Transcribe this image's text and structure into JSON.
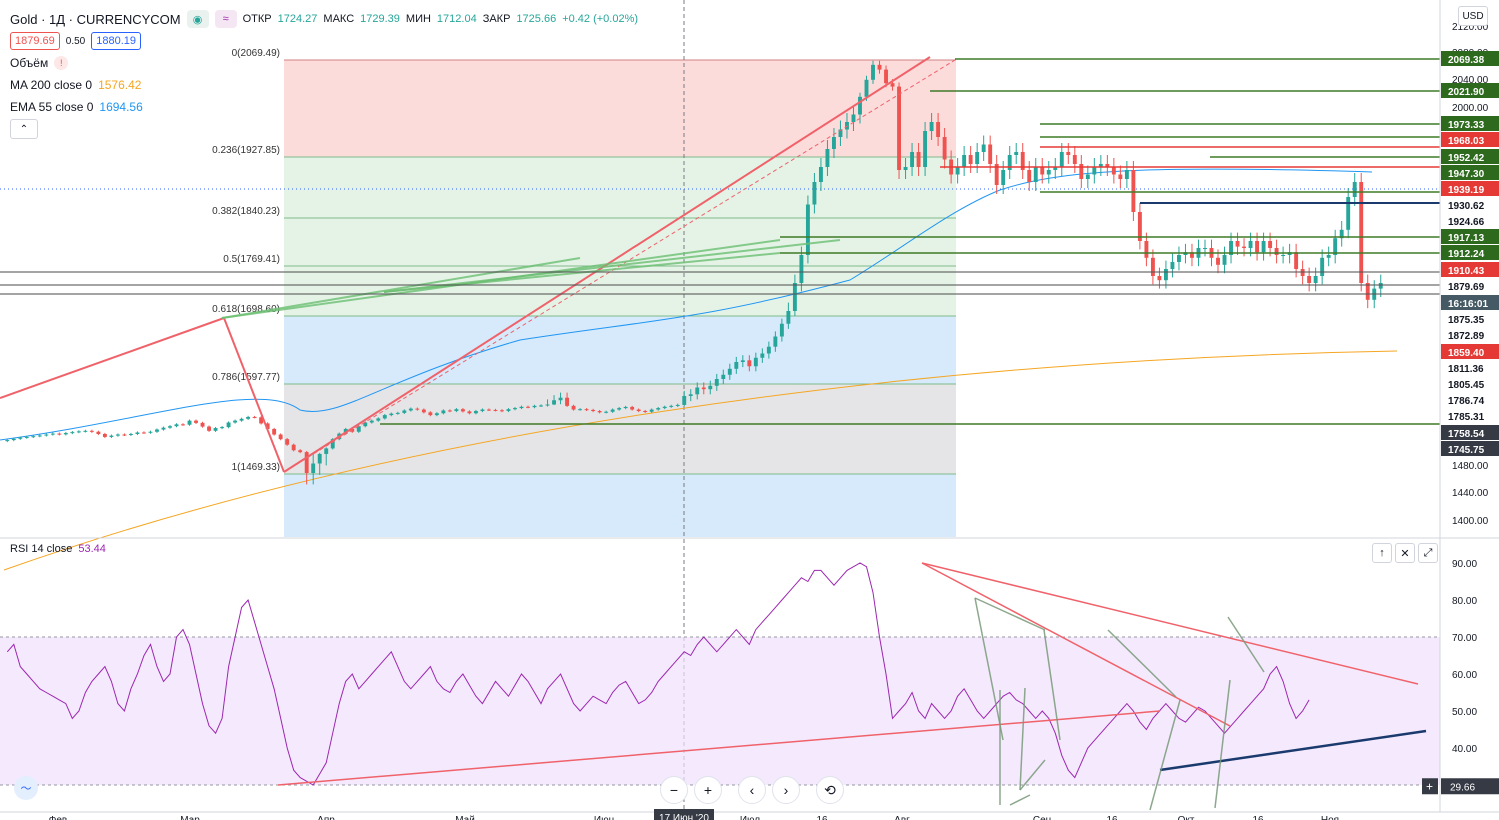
{
  "legend": {
    "symbol_title": "Gold · 1Д · CURRENCYCOM",
    "open_label": "ОТКР",
    "open": "1724.27",
    "high_label": "МАКС",
    "high": "1729.39",
    "low_label": "МИН",
    "low": "1712.04",
    "close_label": "ЗАКР",
    "close": "1725.66",
    "change": "+0.42 (+0.02%)",
    "bid": "1879.69",
    "spread": "0.50",
    "ask": "1880.19",
    "volume_label": "Объём",
    "ma_label": "MA 200 close 0",
    "ma_value": "1576.42",
    "ema_label": "EMA 55 close 0",
    "ema_value": "1694.56",
    "collapse_icon": "chevron-up-icon"
  },
  "currency": "USD",
  "rsi_legend": {
    "label": "RSI 14 close",
    "value": "53.44"
  },
  "colors": {
    "up": "#26a69a",
    "down": "#ef5350",
    "ma200": "#f5a623",
    "ema55": "#2196f3",
    "rsi": "#9c27b0",
    "rsi_band": "#f0e0fc",
    "trend_red": "#f0626a",
    "trend_green": "#6cbf72",
    "fib_red": "#fbd5d5",
    "fib_green": "#dff1e2",
    "fib_blue": "#cfe6fb",
    "fib_gray": "#e1e1e3",
    "navy": "#1a3a6e"
  },
  "fib_labels": [
    "0(2069.49)",
    "0.236(1927.85)",
    "0.382(1840.23)",
    "0.5(1769.41)",
    "0.618(1698.60)",
    "0.786(1597.77)",
    "1(1469.33)"
  ],
  "price_axis_ticks": [
    "2120.00",
    "2080.00",
    "2040.00",
    "2000.00",
    "1480.00",
    "1440.00",
    "1400.00"
  ],
  "price_tags": [
    {
      "text": "2069.38",
      "style": "green"
    },
    {
      "text": "2021.90",
      "style": "green"
    },
    {
      "text": "1973.33",
      "style": "green"
    },
    {
      "text": "1968.03",
      "style": "red"
    },
    {
      "text": "1952.42",
      "style": "green"
    },
    {
      "text": "1947.30",
      "style": "green"
    },
    {
      "text": "1939.19",
      "style": "red"
    },
    {
      "text": "1930.62",
      "style": "navy"
    },
    {
      "text": "1924.66",
      "style": "gray"
    },
    {
      "text": "1917.13",
      "style": "green"
    },
    {
      "text": "1912.24",
      "style": "green"
    },
    {
      "text": "1910.43",
      "style": "red"
    },
    {
      "text": "1879.69",
      "style": "gray"
    },
    {
      "text": "16:16:01",
      "style": "teal"
    },
    {
      "text": "1875.35",
      "style": "gray"
    },
    {
      "text": "1872.89",
      "style": "gray"
    },
    {
      "text": "1859.40",
      "style": "red"
    },
    {
      "text": "1811.36",
      "style": "gray"
    },
    {
      "text": "1805.45",
      "style": "gray"
    },
    {
      "text": "1786.74",
      "style": "gray"
    },
    {
      "text": "1785.31",
      "style": "gray"
    },
    {
      "text": "1758.54",
      "style": "dark"
    },
    {
      "text": "1745.75",
      "style": "dark"
    }
  ],
  "rsi_axis_ticks": [
    "90.00",
    "80.00",
    "70.00",
    "60.00",
    "50.00",
    "40.00"
  ],
  "rsi_crosshair_value": "29.66",
  "time_axis_labels": [
    "Фев",
    "Мар",
    "Апр",
    "Май",
    "Июн",
    "Июл",
    "16",
    "Авг",
    "Сен",
    "16",
    "Окт",
    "16",
    "Ноя"
  ],
  "crosshair_date": "17 Июн '20",
  "nav_buttons": [
    "−",
    "+",
    "‹",
    "›",
    "⟲"
  ],
  "pane_tools": [
    "↑",
    "✕",
    "⤢"
  ],
  "chart_data": {
    "type": "candlestick",
    "instrument": "Gold",
    "timeframe": "1Д",
    "ylim": [
      1400,
      2120
    ],
    "ohlc_open": [
      1550,
      1555,
      1562,
      1568,
      1572,
      1576,
      1580,
      1585,
      1590,
      1586,
      1593,
      1598,
      1602,
      1605,
      1600,
      1588,
      1572,
      1579,
      1585,
      1583,
      1588,
      1596,
      1595,
      1600,
      1612,
      1622,
      1630,
      1640,
      1638,
      1660,
      1648,
      1628,
      1605,
      1620,
      1625,
      1650,
      1660,
      1670,
      1680,
      1678,
      1645,
      1615,
      1585,
      1560,
      1530,
      1500,
      1490,
      1470,
      1475,
      1480,
      1510,
      1560,
      1590,
      1615,
      1600,
      1630,
      1650,
      1660,
      1672,
      1690,
      1698,
      1702,
      1715,
      1725,
      1720,
      1705,
      1690,
      1700,
      1715,
      1712,
      1722,
      1710,
      1700,
      1712,
      1720,
      1718,
      1716,
      1712,
      1722,
      1728,
      1735,
      1733,
      1740,
      1742,
      1750,
      1755,
      1758,
      1740,
      1720,
      1722,
      1718,
      1712,
      1705,
      1708,
      1720,
      1728,
      1734,
      1720,
      1712,
      1708,
      1720,
      1728,
      1735,
      1740,
      1745,
      1760,
      1762,
      1770,
      1768,
      1772,
      1780,
      1785,
      1792,
      1800,
      1802,
      1795,
      1805,
      1810,
      1818,
      1830,
      1845,
      1860,
      1880,
      1900,
      1935,
      1950,
      1960,
      1972,
      1980,
      1985,
      1990,
      1995,
      2015,
      2040,
      2062,
      2055,
      2035,
      2030,
      1958,
      1960,
      1970,
      1960,
      1984,
      1990,
      1980,
      1965,
      1955,
      1960,
      1968,
      1962,
      1970,
      1975,
      1962,
      1948,
      1958,
      1968,
      1970,
      1958,
      1950,
      1960,
      1955,
      1958,
      1960,
      1970,
      1968,
      1962,
      1952,
      1955,
      1960,
      1962,
      1960,
      1955,
      1952,
      1958,
      1930,
      1910,
      1898,
      1885,
      1882,
      1890,
      1895,
      1900,
      1902,
      1898,
      1905,
      1905,
      1898,
      1893,
      1900,
      1910,
      1906,
      1905,
      1910,
      1902,
      1910,
      1905,
      1900,
      1900,
      1902,
      1890,
      1885,
      1880,
      1885,
      1898,
      1900,
      1912,
      1918,
      1940,
      1950,
      1880,
      1868,
      1876
    ],
    "ohlc_close": [
      1555,
      1562,
      1568,
      1572,
      1576,
      1580,
      1585,
      1590,
      1586,
      1593,
      1598,
      1602,
      1605,
      1600,
      1588,
      1572,
      1579,
      1585,
      1583,
      1588,
      1596,
      1595,
      1600,
      1612,
      1622,
      1630,
      1640,
      1638,
      1660,
      1648,
      1628,
      1605,
      1620,
      1625,
      1650,
      1660,
      1670,
      1680,
      1678,
      1645,
      1615,
      1585,
      1560,
      1530,
      1500,
      1490,
      1470,
      1475,
      1480,
      1510,
      1560,
      1590,
      1615,
      1600,
      1630,
      1650,
      1660,
      1672,
      1690,
      1698,
      1702,
      1715,
      1725,
      1720,
      1705,
      1690,
      1700,
      1715,
      1712,
      1722,
      1710,
      1700,
      1712,
      1720,
      1718,
      1716,
      1712,
      1722,
      1728,
      1735,
      1733,
      1740,
      1742,
      1750,
      1755,
      1758,
      1740,
      1720,
      1722,
      1718,
      1712,
      1705,
      1708,
      1720,
      1728,
      1734,
      1720,
      1712,
      1708,
      1720,
      1728,
      1735,
      1740,
      1745,
      1760,
      1762,
      1770,
      1768,
      1772,
      1780,
      1785,
      1792,
      1800,
      1802,
      1795,
      1805,
      1810,
      1818,
      1830,
      1845,
      1860,
      1880,
      1900,
      1935,
      1950,
      1960,
      1972,
      1980,
      1985,
      1990,
      1995,
      2015,
      2040,
      2062,
      2055,
      2035,
      2030,
      1958,
      1960,
      1970,
      1960,
      1984,
      1990,
      1980,
      1965,
      1955,
      1960,
      1968,
      1962,
      1970,
      1975,
      1962,
      1948,
      1958,
      1968,
      1970,
      1958,
      1950,
      1960,
      1955,
      1958,
      1960,
      1970,
      1968,
      1962,
      1952,
      1955,
      1960,
      1962,
      1960,
      1955,
      1952,
      1958,
      1930,
      1910,
      1898,
      1885,
      1882,
      1890,
      1895,
      1900,
      1902,
      1898,
      1905,
      1905,
      1898,
      1893,
      1900,
      1910,
      1906,
      1905,
      1910,
      1902,
      1910,
      1905,
      1900,
      1900,
      1902,
      1890,
      1885,
      1880,
      1885,
      1898,
      1900,
      1912,
      1918,
      1940,
      1950,
      1880,
      1868,
      1876,
      1880
    ],
    "ma200_endpoints": [
      [
        0,
        1440
      ],
      [
        214,
        1880
      ]
    ],
    "ema55_endpoints": [
      [
        0,
        1565
      ],
      [
        214,
        1958
      ]
    ],
    "rsi": {
      "period": 14,
      "last": 53.44,
      "ylim": [
        28,
        93
      ],
      "band": [
        30,
        70
      ],
      "values": [
        66,
        68,
        62,
        60,
        58,
        56,
        55,
        54,
        53,
        52,
        48,
        50,
        55,
        58,
        60,
        62,
        58,
        52,
        50,
        56,
        60,
        65,
        68,
        62,
        58,
        60,
        70,
        72,
        68,
        60,
        52,
        46,
        44,
        48,
        62,
        70,
        78,
        80,
        74,
        68,
        62,
        56,
        48,
        40,
        34,
        32,
        31,
        30,
        33,
        36,
        44,
        52,
        58,
        60,
        56,
        58,
        60,
        62,
        64,
        66,
        62,
        58,
        56,
        58,
        60,
        62,
        58,
        56,
        55,
        58,
        60,
        57,
        54,
        52,
        55,
        58,
        56,
        54,
        57,
        60,
        58,
        55,
        52,
        56,
        58,
        60,
        56,
        52,
        50,
        52,
        54,
        53,
        52,
        55,
        57,
        58,
        55,
        52,
        53,
        55,
        58,
        60,
        62,
        64,
        66,
        65,
        68,
        70,
        68,
        66,
        68,
        70,
        72,
        70,
        68,
        72,
        74,
        76,
        78,
        80,
        82,
        84,
        86,
        85,
        88,
        88,
        86,
        84,
        86,
        88,
        89,
        90,
        89,
        82,
        70,
        60,
        48,
        50,
        52,
        55,
        50,
        48,
        52,
        50,
        48,
        50,
        54,
        56,
        53,
        50,
        48,
        50,
        52,
        54,
        55,
        53,
        52,
        50,
        48,
        50,
        48,
        44,
        38,
        34,
        32,
        36,
        40,
        42,
        44,
        46,
        48,
        50,
        52,
        50,
        47,
        45,
        48,
        50,
        52,
        50,
        48,
        47,
        49,
        51,
        50,
        48,
        46,
        44,
        46,
        48,
        50,
        52,
        54,
        56,
        60,
        62,
        58,
        52,
        48,
        50,
        53
      ]
    }
  }
}
